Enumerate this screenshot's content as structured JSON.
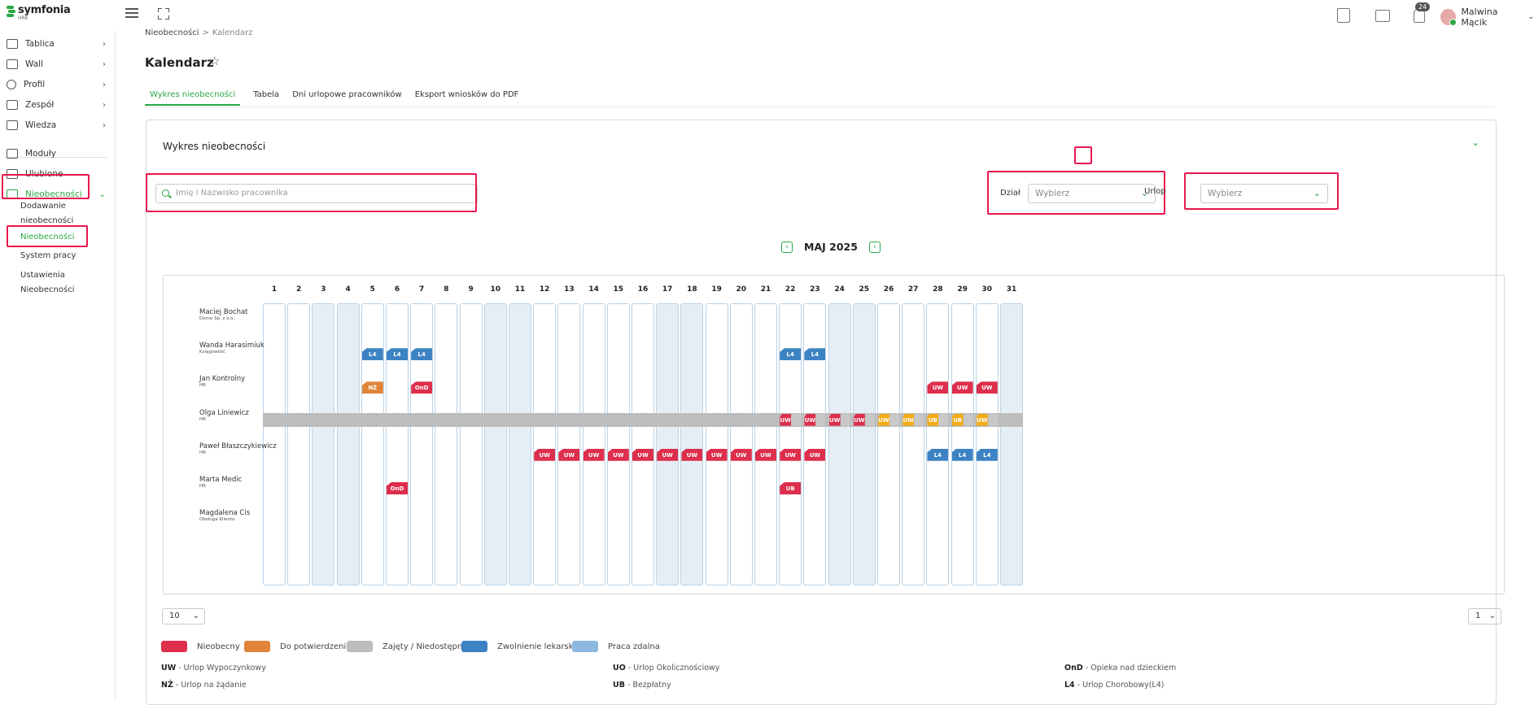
{
  "app": {
    "logo_text": "symfonia",
    "logo_sub": "HRK",
    "notifications_count": "24",
    "user_name": "Malwina Mącik"
  },
  "sidebar": {
    "items": [
      {
        "label": "Tablica",
        "icon": "monitor-icon"
      },
      {
        "label": "Wall",
        "icon": "chat-icon"
      },
      {
        "label": "Profil",
        "icon": "user-icon"
      },
      {
        "label": "Zespół",
        "icon": "team-icon"
      },
      {
        "label": "Wiedza",
        "icon": "book-icon"
      },
      {
        "label": "Moduły",
        "icon": "wrench-icon"
      },
      {
        "label": "Ulubione",
        "icon": "star-icon"
      },
      {
        "label": "Nieobecności",
        "icon": "wrench-icon"
      }
    ],
    "sub_items": [
      "Dodawanie",
      "nieobecności",
      "Nieobecności",
      "System pracy",
      "Ustawienia",
      "Nieobecności"
    ]
  },
  "breadcrumb": {
    "parent": "Nieobecności",
    "separator": ">",
    "current": "Kalendarz"
  },
  "page_title": "Kalendarz",
  "tabs": [
    "Wykres nieobecności",
    "Tabela",
    "Dni urlopowe pracowników",
    "Eksport wniosków do PDF"
  ],
  "panel": {
    "title": "Wykres nieobecności",
    "search_placeholder": "Imię i Nazwisko pracownika",
    "dept_label": "Dział",
    "dept_value": "Wybierz",
    "leave_label": "Urlop",
    "leave_value": "Wybierz",
    "month": "MAJ 2025"
  },
  "calendar": {
    "days": [
      "1",
      "2",
      "3",
      "4",
      "5",
      "6",
      "7",
      "8",
      "9",
      "10",
      "11",
      "12",
      "13",
      "14",
      "15",
      "16",
      "17",
      "18",
      "19",
      "20",
      "21",
      "22",
      "23",
      "24",
      "25",
      "26",
      "27",
      "28",
      "29",
      "30",
      "31"
    ],
    "weekend_days": [
      3,
      4,
      10,
      11,
      17,
      18,
      24,
      25,
      31
    ],
    "employees": [
      {
        "name": "Maciej Bochat",
        "dept": "Demo Sp. z o.o."
      },
      {
        "name": "Wanda Harasimiuk",
        "dept": "Księgowość"
      },
      {
        "name": "Jan Kontrolny",
        "dept": "HR"
      },
      {
        "name": "Olga Liniewicz",
        "dept": "HR"
      },
      {
        "name": "Paweł Błaszczykiewicz",
        "dept": "HR"
      },
      {
        "name": "Marta Medic",
        "dept": "HR"
      },
      {
        "name": "Magdalena Cis",
        "dept": "Obsługa Klienta"
      }
    ],
    "absences": [
      {
        "row": 1,
        "day": 5,
        "code": "L4",
        "color": "b"
      },
      {
        "row": 1,
        "day": 6,
        "code": "L4",
        "color": "b"
      },
      {
        "row": 1,
        "day": 7,
        "code": "L4",
        "color": "b"
      },
      {
        "row": 1,
        "day": 22,
        "code": "L4",
        "color": "b"
      },
      {
        "row": 1,
        "day": 23,
        "code": "L4",
        "color": "b"
      },
      {
        "row": 2,
        "day": 5,
        "code": "NŻ",
        "color": "o"
      },
      {
        "row": 2,
        "day": 7,
        "code": "OnD",
        "color": "r"
      },
      {
        "row": 2,
        "day": 28,
        "code": "UW",
        "color": "r"
      },
      {
        "row": 2,
        "day": 29,
        "code": "UW",
        "color": "r"
      },
      {
        "row": 2,
        "day": 30,
        "code": "UW",
        "color": "r"
      },
      {
        "row": 4,
        "day": 12,
        "code": "UW",
        "color": "r"
      },
      {
        "row": 4,
        "day": 13,
        "code": "UW",
        "color": "r"
      },
      {
        "row": 4,
        "day": 14,
        "code": "UW",
        "color": "r"
      },
      {
        "row": 4,
        "day": 15,
        "code": "UW",
        "color": "r"
      },
      {
        "row": 4,
        "day": 16,
        "code": "UW",
        "color": "r"
      },
      {
        "row": 4,
        "day": 17,
        "code": "UW",
        "color": "r"
      },
      {
        "row": 4,
        "day": 18,
        "code": "UW",
        "color": "r"
      },
      {
        "row": 4,
        "day": 19,
        "code": "UW",
        "color": "r"
      },
      {
        "row": 4,
        "day": 20,
        "code": "UW",
        "color": "r"
      },
      {
        "row": 4,
        "day": 21,
        "code": "UW",
        "color": "r"
      },
      {
        "row": 4,
        "day": 22,
        "code": "UW",
        "color": "r"
      },
      {
        "row": 4,
        "day": 23,
        "code": "UW",
        "color": "r"
      },
      {
        "row": 4,
        "day": 28,
        "code": "L4",
        "color": "b"
      },
      {
        "row": 4,
        "day": 29,
        "code": "L4",
        "color": "b"
      },
      {
        "row": 4,
        "day": 30,
        "code": "L4",
        "color": "b"
      },
      {
        "row": 5,
        "day": 6,
        "code": "OnD",
        "color": "r"
      },
      {
        "row": 5,
        "day": 22,
        "code": "UB",
        "color": "r"
      }
    ],
    "split_row": 3,
    "split_tags": [
      {
        "day": 22,
        "code": "UW",
        "color": "r"
      },
      {
        "day": 23,
        "code": "UW",
        "color": "r"
      },
      {
        "day": 24,
        "code": "UW",
        "color": "r"
      },
      {
        "day": 25,
        "code": "UW",
        "color": "r"
      },
      {
        "day": 26,
        "code": "UW",
        "color": "y"
      },
      {
        "day": 27,
        "code": "UW",
        "color": "y"
      },
      {
        "day": 28,
        "code": "UB",
        "color": "y"
      },
      {
        "day": 29,
        "code": "UB",
        "color": "y"
      },
      {
        "day": 30,
        "code": "UW",
        "color": "y"
      }
    ]
  },
  "pager": {
    "page_size": "10",
    "page": "1"
  },
  "legend": [
    {
      "label": "Nieobecny",
      "color": "#dd2f4c"
    },
    {
      "label": "Do potwierdzenia",
      "color": "#e0843a"
    },
    {
      "label": "Zajęty / Niedostępny",
      "color": "#bdbdbd"
    },
    {
      "label": "Zwolnienie lekarskie",
      "color": "#3d83c4"
    },
    {
      "label": "Praca zdalna",
      "color": "#8db9e0"
    }
  ],
  "abbreviations": [
    {
      "code": "UW",
      "desc": "Urlop Wypoczynkowy"
    },
    {
      "code": "UO",
      "desc": "Urlop Okolicznościowy"
    },
    {
      "code": "OnD",
      "desc": "Opieka nad dzieckiem"
    },
    {
      "code": "NŻ",
      "desc": "Urlop na żądanie"
    },
    {
      "code": "UB",
      "desc": "Bezpłatny"
    },
    {
      "code": "L4",
      "desc": "Urlop Chorobowy(L4)"
    }
  ]
}
